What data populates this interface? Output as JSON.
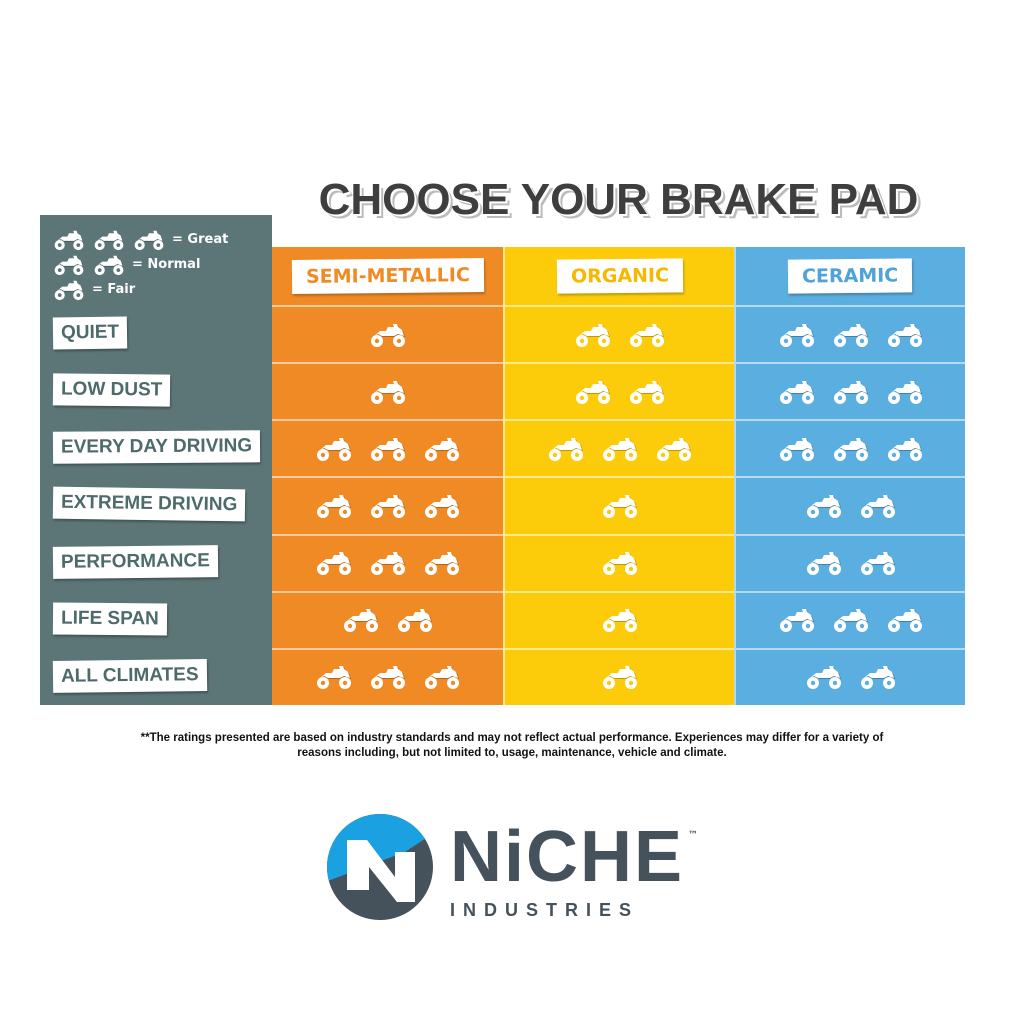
{
  "title": "CHOOSE YOUR BRAKE PAD",
  "legend": [
    {
      "count": 3,
      "label": "= Great"
    },
    {
      "count": 2,
      "label": "= Normal"
    },
    {
      "count": 1,
      "label": "= Fair"
    }
  ],
  "icon": "atv-icon",
  "colors": {
    "panel": "#5c7677",
    "semi_metallic": "#f08a24",
    "organic": "#fccc0a",
    "ceramic": "#5aaee0",
    "label_text": "#4e6b6c"
  },
  "columns": [
    {
      "name": "SEMI-METALLIC",
      "color": "#f08a24",
      "text_color": "#f08a24"
    },
    {
      "name": "ORGANIC",
      "color": "#fccc0a",
      "text_color": "#f6b800"
    },
    {
      "name": "CERAMIC",
      "color": "#5aaee0",
      "text_color": "#4fa3d8"
    }
  ],
  "rows": [
    {
      "label": "QUIET",
      "ratings": [
        1,
        2,
        3
      ]
    },
    {
      "label": "LOW DUST",
      "ratings": [
        1,
        2,
        3
      ]
    },
    {
      "label": "EVERY DAY DRIVING",
      "ratings": [
        3,
        3,
        3
      ]
    },
    {
      "label": "EXTREME DRIVING",
      "ratings": [
        3,
        1,
        2
      ]
    },
    {
      "label": "PERFORMANCE",
      "ratings": [
        3,
        1,
        2
      ]
    },
    {
      "label": "LIFE SPAN",
      "ratings": [
        2,
        1,
        3
      ]
    },
    {
      "label": "ALL CLIMATES",
      "ratings": [
        3,
        1,
        2
      ]
    }
  ],
  "disclaimer": "**The ratings presented are based on industry standards and may not reflect actual performance. Experiences may differ for a variety of reasons including, but not limited to, usage, maintenance, vehicle and climate.",
  "logo": {
    "name": "NiCHE",
    "sub": "INDUSTRIES",
    "tm": "™"
  }
}
